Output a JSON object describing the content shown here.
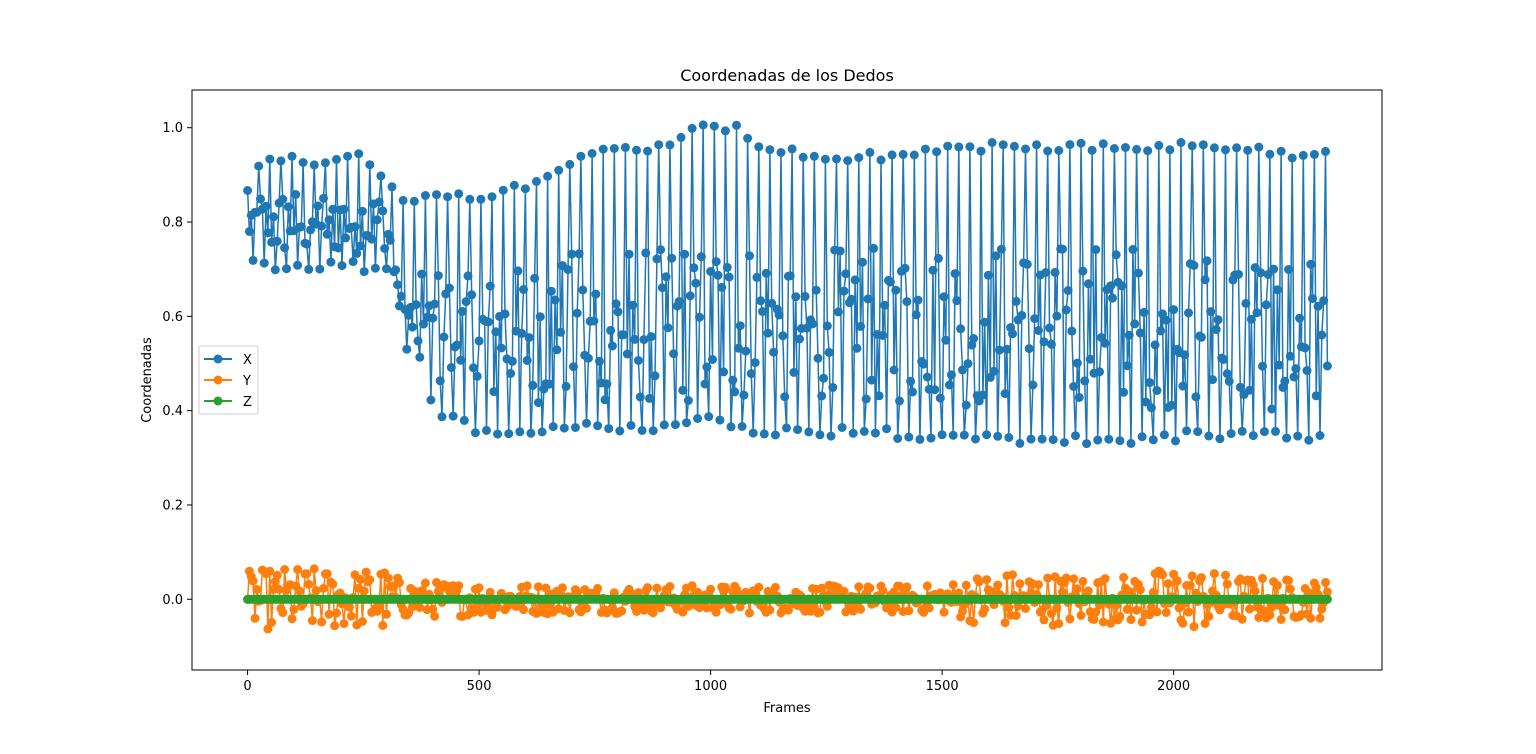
{
  "chart_data": {
    "type": "line",
    "title": "Coordenadas de los Dedos",
    "xlabel": "Frames",
    "ylabel": "Coordenadas",
    "xlim": [
      -120,
      2450
    ],
    "ylim": [
      -0.15,
      1.08
    ],
    "x_ticks": [
      0,
      500,
      1000,
      1500,
      2000
    ],
    "y_ticks": [
      -0.2,
      0.0,
      0.2,
      0.4,
      0.6,
      0.8,
      1.0
    ],
    "x_tick_labels": [
      "0",
      "500",
      "1000",
      "1500",
      "2000"
    ],
    "y_tick_labels": [
      "",
      "0.0",
      "0.2",
      "0.4",
      "0.6",
      "0.8",
      "1.0"
    ],
    "legend_position": "center-left",
    "grid": false,
    "frame_count": 2333,
    "series": [
      {
        "name": "X",
        "color": "#1f77b4",
        "marker": "circle",
        "note_pattern": "oscillating band",
        "upper_envelope": [
          [
            0,
            0.88
          ],
          [
            40,
            0.95
          ],
          [
            150,
            0.94
          ],
          [
            240,
            0.95
          ],
          [
            300,
            0.9
          ],
          [
            340,
            0.86
          ],
          [
            500,
            0.86
          ],
          [
            650,
            0.9
          ],
          [
            760,
            0.97
          ],
          [
            900,
            0.97
          ],
          [
            970,
            1.01
          ],
          [
            1060,
            1.01
          ],
          [
            1100,
            0.97
          ],
          [
            1250,
            0.95
          ],
          [
            1400,
            0.95
          ],
          [
            1600,
            0.97
          ],
          [
            1800,
            0.97
          ],
          [
            2000,
            0.97
          ],
          [
            2150,
            0.97
          ],
          [
            2250,
            0.95
          ],
          [
            2330,
            0.95
          ]
        ],
        "lower_envelope": [
          [
            0,
            0.7
          ],
          [
            100,
            0.69
          ],
          [
            200,
            0.7
          ],
          [
            300,
            0.69
          ],
          [
            340,
            0.62
          ],
          [
            400,
            0.39
          ],
          [
            500,
            0.35
          ],
          [
            600,
            0.34
          ],
          [
            700,
            0.36
          ],
          [
            800,
            0.35
          ],
          [
            900,
            0.35
          ],
          [
            1000,
            0.37
          ],
          [
            1100,
            0.35
          ],
          [
            1200,
            0.34
          ],
          [
            1300,
            0.35
          ],
          [
            1400,
            0.34
          ],
          [
            1600,
            0.33
          ],
          [
            1800,
            0.33
          ],
          [
            1950,
            0.33
          ],
          [
            2050,
            0.34
          ],
          [
            2150,
            0.34
          ],
          [
            2330,
            0.33
          ]
        ],
        "center_band": [
          [
            0,
            0.8
          ],
          [
            300,
            0.8
          ],
          [
            340,
            0.6
          ],
          [
            500,
            0.54
          ],
          [
            700,
            0.58
          ],
          [
            1000,
            0.59
          ],
          [
            1300,
            0.58
          ],
          [
            1600,
            0.58
          ],
          [
            2000,
            0.58
          ],
          [
            2330,
            0.56
          ]
        ]
      },
      {
        "name": "Y",
        "color": "#ff7f0e",
        "marker": "circle",
        "amplitude_profile": [
          [
            0,
            0.06
          ],
          [
            100,
            0.07
          ],
          [
            250,
            0.06
          ],
          [
            280,
            0.09
          ],
          [
            300,
            0.06
          ],
          [
            340,
            0.04
          ],
          [
            700,
            0.03
          ],
          [
            1000,
            0.03
          ],
          [
            1500,
            0.03
          ],
          [
            1600,
            0.06
          ],
          [
            1900,
            0.05
          ],
          [
            2000,
            0.07
          ],
          [
            2080,
            0.06
          ],
          [
            2150,
            0.05
          ],
          [
            2330,
            0.04
          ]
        ]
      },
      {
        "name": "Z",
        "color": "#2ca02c",
        "marker": "circle",
        "constant_value": 0.0
      }
    ]
  }
}
